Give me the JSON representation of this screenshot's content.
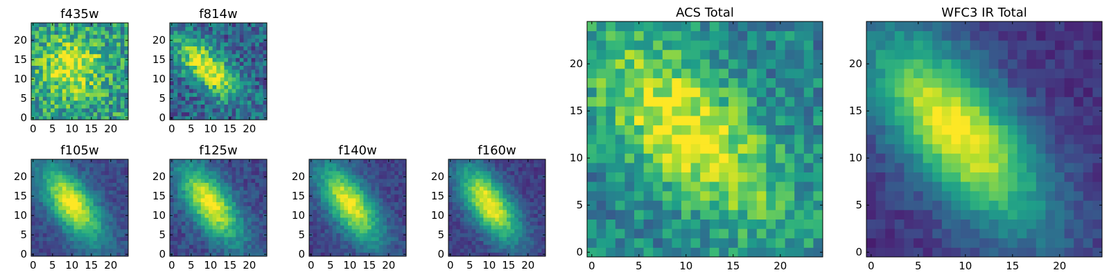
{
  "chart_data": [
    {
      "type": "heatmap",
      "title": "f435w",
      "xticks": [
        0,
        5,
        10,
        15,
        20
      ],
      "yticks": [
        0,
        5,
        10,
        15,
        20
      ],
      "xlim": [
        -0.5,
        24.5
      ],
      "ylim": [
        -0.5,
        24.5
      ],
      "grid": false,
      "colormap": "viridis",
      "peak": {
        "x": 10,
        "y": 13
      },
      "spread_along": 5,
      "spread_across": 5,
      "angle": -45,
      "noise": 0.42,
      "background": 0.55
    },
    {
      "type": "heatmap",
      "title": "f814w",
      "xticks": [
        0,
        5,
        10,
        15,
        20
      ],
      "yticks": [
        0,
        5,
        10,
        15,
        20
      ],
      "xlim": [
        -0.5,
        24.5
      ],
      "ylim": [
        -0.5,
        24.5
      ],
      "grid": false,
      "colormap": "viridis",
      "peak": {
        "x": 9,
        "y": 13
      },
      "spread_along": 7,
      "spread_across": 3,
      "angle": -45,
      "noise": 0.35,
      "background": 0.32
    },
    {
      "type": "heatmap",
      "title": "f105w",
      "xticks": [
        0,
        5,
        10,
        15,
        20
      ],
      "yticks": [
        0,
        5,
        10,
        15,
        20
      ],
      "xlim": [
        -0.5,
        24.5
      ],
      "ylim": [
        -0.5,
        24.5
      ],
      "grid": false,
      "colormap": "viridis",
      "peak": {
        "x": 10,
        "y": 13
      },
      "spread_along": 8,
      "spread_across": 3.6,
      "angle": -55,
      "noise": 0.14,
      "background": 0.22
    },
    {
      "type": "heatmap",
      "title": "f125w",
      "xticks": [
        0,
        5,
        10,
        15,
        20
      ],
      "yticks": [
        0,
        5,
        10,
        15,
        20
      ],
      "xlim": [
        -0.5,
        24.5
      ],
      "ylim": [
        -0.5,
        24.5
      ],
      "grid": false,
      "colormap": "viridis",
      "peak": {
        "x": 10,
        "y": 13
      },
      "spread_along": 8,
      "spread_across": 3.6,
      "angle": -55,
      "noise": 0.16,
      "background": 0.22
    },
    {
      "type": "heatmap",
      "title": "f140w",
      "xticks": [
        0,
        5,
        10,
        15,
        20
      ],
      "yticks": [
        0,
        5,
        10,
        15,
        20
      ],
      "xlim": [
        -0.5,
        24.5
      ],
      "ylim": [
        -0.5,
        24.5
      ],
      "grid": false,
      "colormap": "viridis",
      "peak": {
        "x": 10,
        "y": 13
      },
      "spread_along": 8,
      "spread_across": 3.6,
      "angle": -55,
      "noise": 0.14,
      "background": 0.2
    },
    {
      "type": "heatmap",
      "title": "f160w",
      "xticks": [
        0,
        5,
        10,
        15,
        20
      ],
      "yticks": [
        0,
        5,
        10,
        15,
        20
      ],
      "xlim": [
        -0.5,
        24.5
      ],
      "ylim": [
        -0.5,
        24.5
      ],
      "grid": false,
      "colormap": "viridis",
      "peak": {
        "x": 10,
        "y": 13
      },
      "spread_along": 8,
      "spread_across": 3.6,
      "angle": -55,
      "noise": 0.13,
      "background": 0.18
    },
    {
      "type": "heatmap",
      "title": "ACS Total",
      "xticks": [
        0,
        5,
        10,
        15,
        20
      ],
      "yticks": [
        0,
        5,
        10,
        15,
        20
      ],
      "xlim": [
        -0.5,
        24.5
      ],
      "ylim": [
        -0.5,
        24.5
      ],
      "grid": false,
      "colormap": "viridis",
      "peak": {
        "x": 10,
        "y": 13
      },
      "spread_along": 9,
      "spread_across": 4,
      "angle": -45,
      "noise": 0.3,
      "background": 0.45
    },
    {
      "type": "heatmap",
      "title": "WFC3 IR Total",
      "xticks": [
        0,
        5,
        10,
        15,
        20
      ],
      "yticks": [
        0,
        5,
        10,
        15,
        20
      ],
      "xlim": [
        -0.5,
        24.5
      ],
      "ylim": [
        -0.5,
        24.5
      ],
      "grid": false,
      "colormap": "viridis",
      "peak": {
        "x": 9,
        "y": 13
      },
      "spread_along": 9,
      "spread_across": 4,
      "angle": -50,
      "noise": 0.12,
      "background": 0.15
    }
  ]
}
